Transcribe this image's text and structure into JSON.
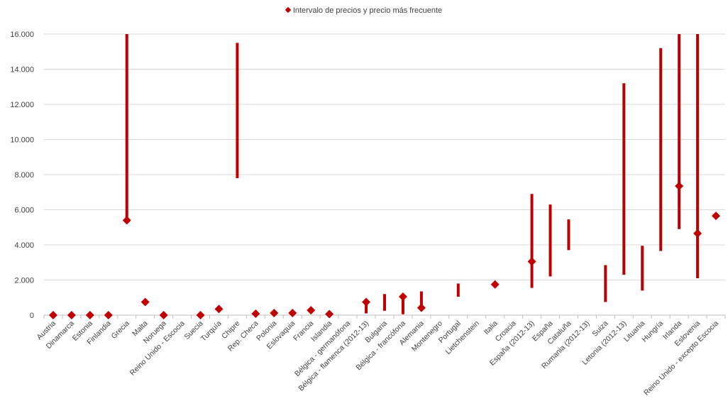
{
  "chart_data": {
    "type": "scatter",
    "title": "",
    "xlabel": "",
    "ylabel": "",
    "legend": {
      "label": "Intervalo de precios y precio más frecuente",
      "position": "top-center"
    },
    "ylim": [
      0,
      16000
    ],
    "yticks": [
      "0",
      "2.000",
      "4.000",
      "6.000",
      "8.000",
      "10.000",
      "12.000",
      "14.000",
      "16.000"
    ],
    "grid": true,
    "series_color": "#c00000",
    "categories": [
      "Austria",
      "Dinamarca",
      "Estonia",
      "Finlandia",
      "Grecia",
      "Malta",
      "Noruega",
      "Reino Unido - Escocia",
      "Suecia",
      "Turquía",
      "Chipre",
      "Rep. Checa",
      "Polonia",
      "Eslovaquia",
      "Francia",
      "Islandia",
      "Bélgica - germanófona",
      "Bélgica - flamenca (2012-13)",
      "Bulgaria",
      "Bélgica - francófona",
      "Alemania",
      "Montenegro",
      "Portugal",
      "Lietchenstein",
      "Italia",
      "Croacia",
      "España (2012-13)",
      "España",
      "Cataluña",
      "Rumania (2012-13)",
      "Suiza",
      "Letonia (2012-13)",
      "Lituania",
      "Hungría",
      "Irlanda",
      "Eslovenia",
      "Reino Unido - excepto Escocia"
    ],
    "range_low": [
      null,
      null,
      null,
      null,
      5400,
      null,
      null,
      null,
      null,
      null,
      7800,
      null,
      null,
      null,
      null,
      null,
      null,
      100,
      250,
      50,
      300,
      null,
      1050,
      null,
      null,
      null,
      1550,
      2200,
      3700,
      null,
      750,
      2300,
      1400,
      3650,
      4900,
      2100,
      null
    ],
    "range_high": [
      null,
      null,
      null,
      null,
      16000,
      null,
      null,
      null,
      null,
      null,
      15500,
      null,
      null,
      null,
      null,
      null,
      null,
      850,
      1200,
      1150,
      1350,
      null,
      1800,
      null,
      null,
      null,
      6900,
      6300,
      5450,
      null,
      2850,
      13200,
      3950,
      15200,
      16000,
      16000,
      null
    ],
    "most_frequent": [
      0,
      0,
      0,
      0,
      5400,
      750,
      0,
      null,
      0,
      350,
      null,
      80,
      120,
      120,
      280,
      60,
      null,
      750,
      null,
      1050,
      420,
      null,
      null,
      null,
      1750,
      null,
      3050,
      null,
      null,
      null,
      null,
      null,
      null,
      null,
      7350,
      4650,
      5650
    ]
  }
}
